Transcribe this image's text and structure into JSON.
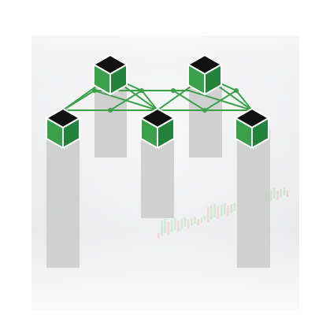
{
  "illustration": {
    "subject": "blockchain-network-logo",
    "colors": {
      "cube_side_green": "#3aa14a",
      "cube_side_dark_green": "#24833a",
      "cube_top": "#111111",
      "link_line": "#3aa14a",
      "column": "#cfcfcf",
      "screen_background": "#2b3646",
      "candle_green": "#4caf50",
      "candle_red": "#e45b5b"
    }
  }
}
